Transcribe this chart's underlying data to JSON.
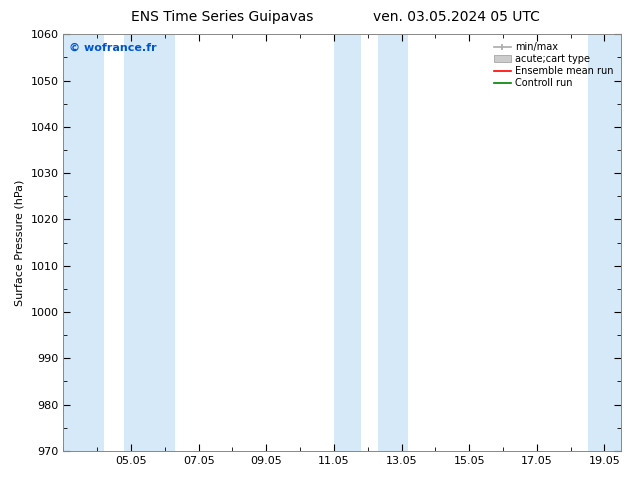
{
  "title_left": "ENS Time Series Guipavas",
  "title_right": "ven. 03.05.2024 05 UTC",
  "ylabel": "Surface Pressure (hPa)",
  "ylim": [
    970,
    1060
  ],
  "yticks": [
    970,
    980,
    990,
    1000,
    1010,
    1020,
    1030,
    1040,
    1050,
    1060
  ],
  "xlim_start": 3.0,
  "xlim_end": 19.5,
  "xtick_positions": [
    5.0,
    7.0,
    9.0,
    11.0,
    13.0,
    15.0,
    17.0,
    19.0
  ],
  "xtick_labels": [
    "05.05",
    "07.05",
    "09.05",
    "11.05",
    "13.05",
    "15.05",
    "17.05",
    "19.05"
  ],
  "shaded_bands": [
    {
      "xmin": 3.0,
      "xmax": 4.2
    },
    {
      "xmin": 4.8,
      "xmax": 6.3
    },
    {
      "xmin": 11.0,
      "xmax": 11.8
    },
    {
      "xmin": 12.3,
      "xmax": 13.2
    },
    {
      "xmin": 18.5,
      "xmax": 19.5
    }
  ],
  "band_color": "#d6e9f8",
  "background_color": "#ffffff",
  "watermark_text": "© wofrance.fr",
  "watermark_color": "#0055cc",
  "legend_labels": [
    "min/max",
    "acute;cart type",
    "Ensemble mean run",
    "Controll run"
  ],
  "legend_colors": [
    "#aaaaaa",
    "#cccccc",
    "#ff0000",
    "#008000"
  ],
  "title_fontsize": 10,
  "axis_fontsize": 8,
  "tick_fontsize": 8,
  "watermark_fontsize": 8,
  "legend_fontsize": 7
}
